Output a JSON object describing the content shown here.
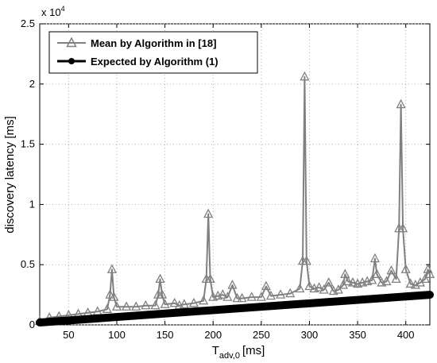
{
  "chart_data": {
    "type": "line",
    "title": "",
    "xlabel": "T",
    "xlabel_sub": "adv,0",
    "xlabel_unit": "[ms]",
    "ylabel": "discovery latency [ms]",
    "y_exponent_label": "x 10",
    "y_exponent_power": "4",
    "xlim": [
      20,
      425
    ],
    "ylim": [
      0,
      25000
    ],
    "xticks": [
      50,
      100,
      150,
      200,
      250,
      300,
      350,
      400
    ],
    "yticks": [
      0,
      5000,
      10000,
      15000,
      20000,
      25000
    ],
    "ytick_labels": [
      "0",
      "0.5",
      "1",
      "1.5",
      "2",
      "2.5"
    ],
    "grid": true,
    "legend_position": "top-left",
    "series": [
      {
        "name": "Mean by Algorithm in [18]",
        "color": "#808080",
        "marker": "triangle",
        "x": [
          20,
          30,
          40,
          50,
          60,
          70,
          80,
          90,
          93,
          95,
          97,
          100,
          110,
          120,
          130,
          140,
          143,
          145,
          147,
          150,
          160,
          165,
          170,
          180,
          190,
          193,
          195,
          197,
          200,
          205,
          210,
          215,
          220,
          225,
          230,
          240,
          250,
          255,
          260,
          270,
          280,
          290,
          293,
          295,
          297,
          300,
          305,
          310,
          315,
          320,
          325,
          330,
          335,
          337,
          340,
          345,
          350,
          355,
          360,
          365,
          368,
          370,
          375,
          380,
          385,
          390,
          393,
          395,
          397,
          400,
          405,
          410,
          415,
          420,
          423,
          425
        ],
        "y": [
          300,
          600,
          700,
          800,
          900,
          1000,
          1100,
          1300,
          2500,
          4600,
          2300,
          1500,
          1500,
          1500,
          1600,
          1600,
          2500,
          3800,
          2500,
          1700,
          1800,
          1600,
          1700,
          1800,
          2000,
          3800,
          9200,
          3800,
          2300,
          2400,
          2500,
          2300,
          3300,
          2200,
          2200,
          2300,
          2300,
          3200,
          2400,
          2500,
          2600,
          3000,
          5300,
          20600,
          5300,
          3200,
          3000,
          3100,
          2900,
          3500,
          2800,
          2900,
          3300,
          4200,
          3600,
          3500,
          3400,
          3500,
          3600,
          3700,
          5500,
          4200,
          3500,
          3600,
          4500,
          3800,
          8000,
          18300,
          8000,
          4600,
          3400,
          3300,
          3500,
          3800,
          4600,
          4200
        ]
      },
      {
        "name": "Expected by Algorithm (1)",
        "color": "#000000",
        "marker": "circle",
        "x": [
          20,
          425
        ],
        "y": [
          200,
          2500
        ]
      }
    ]
  }
}
